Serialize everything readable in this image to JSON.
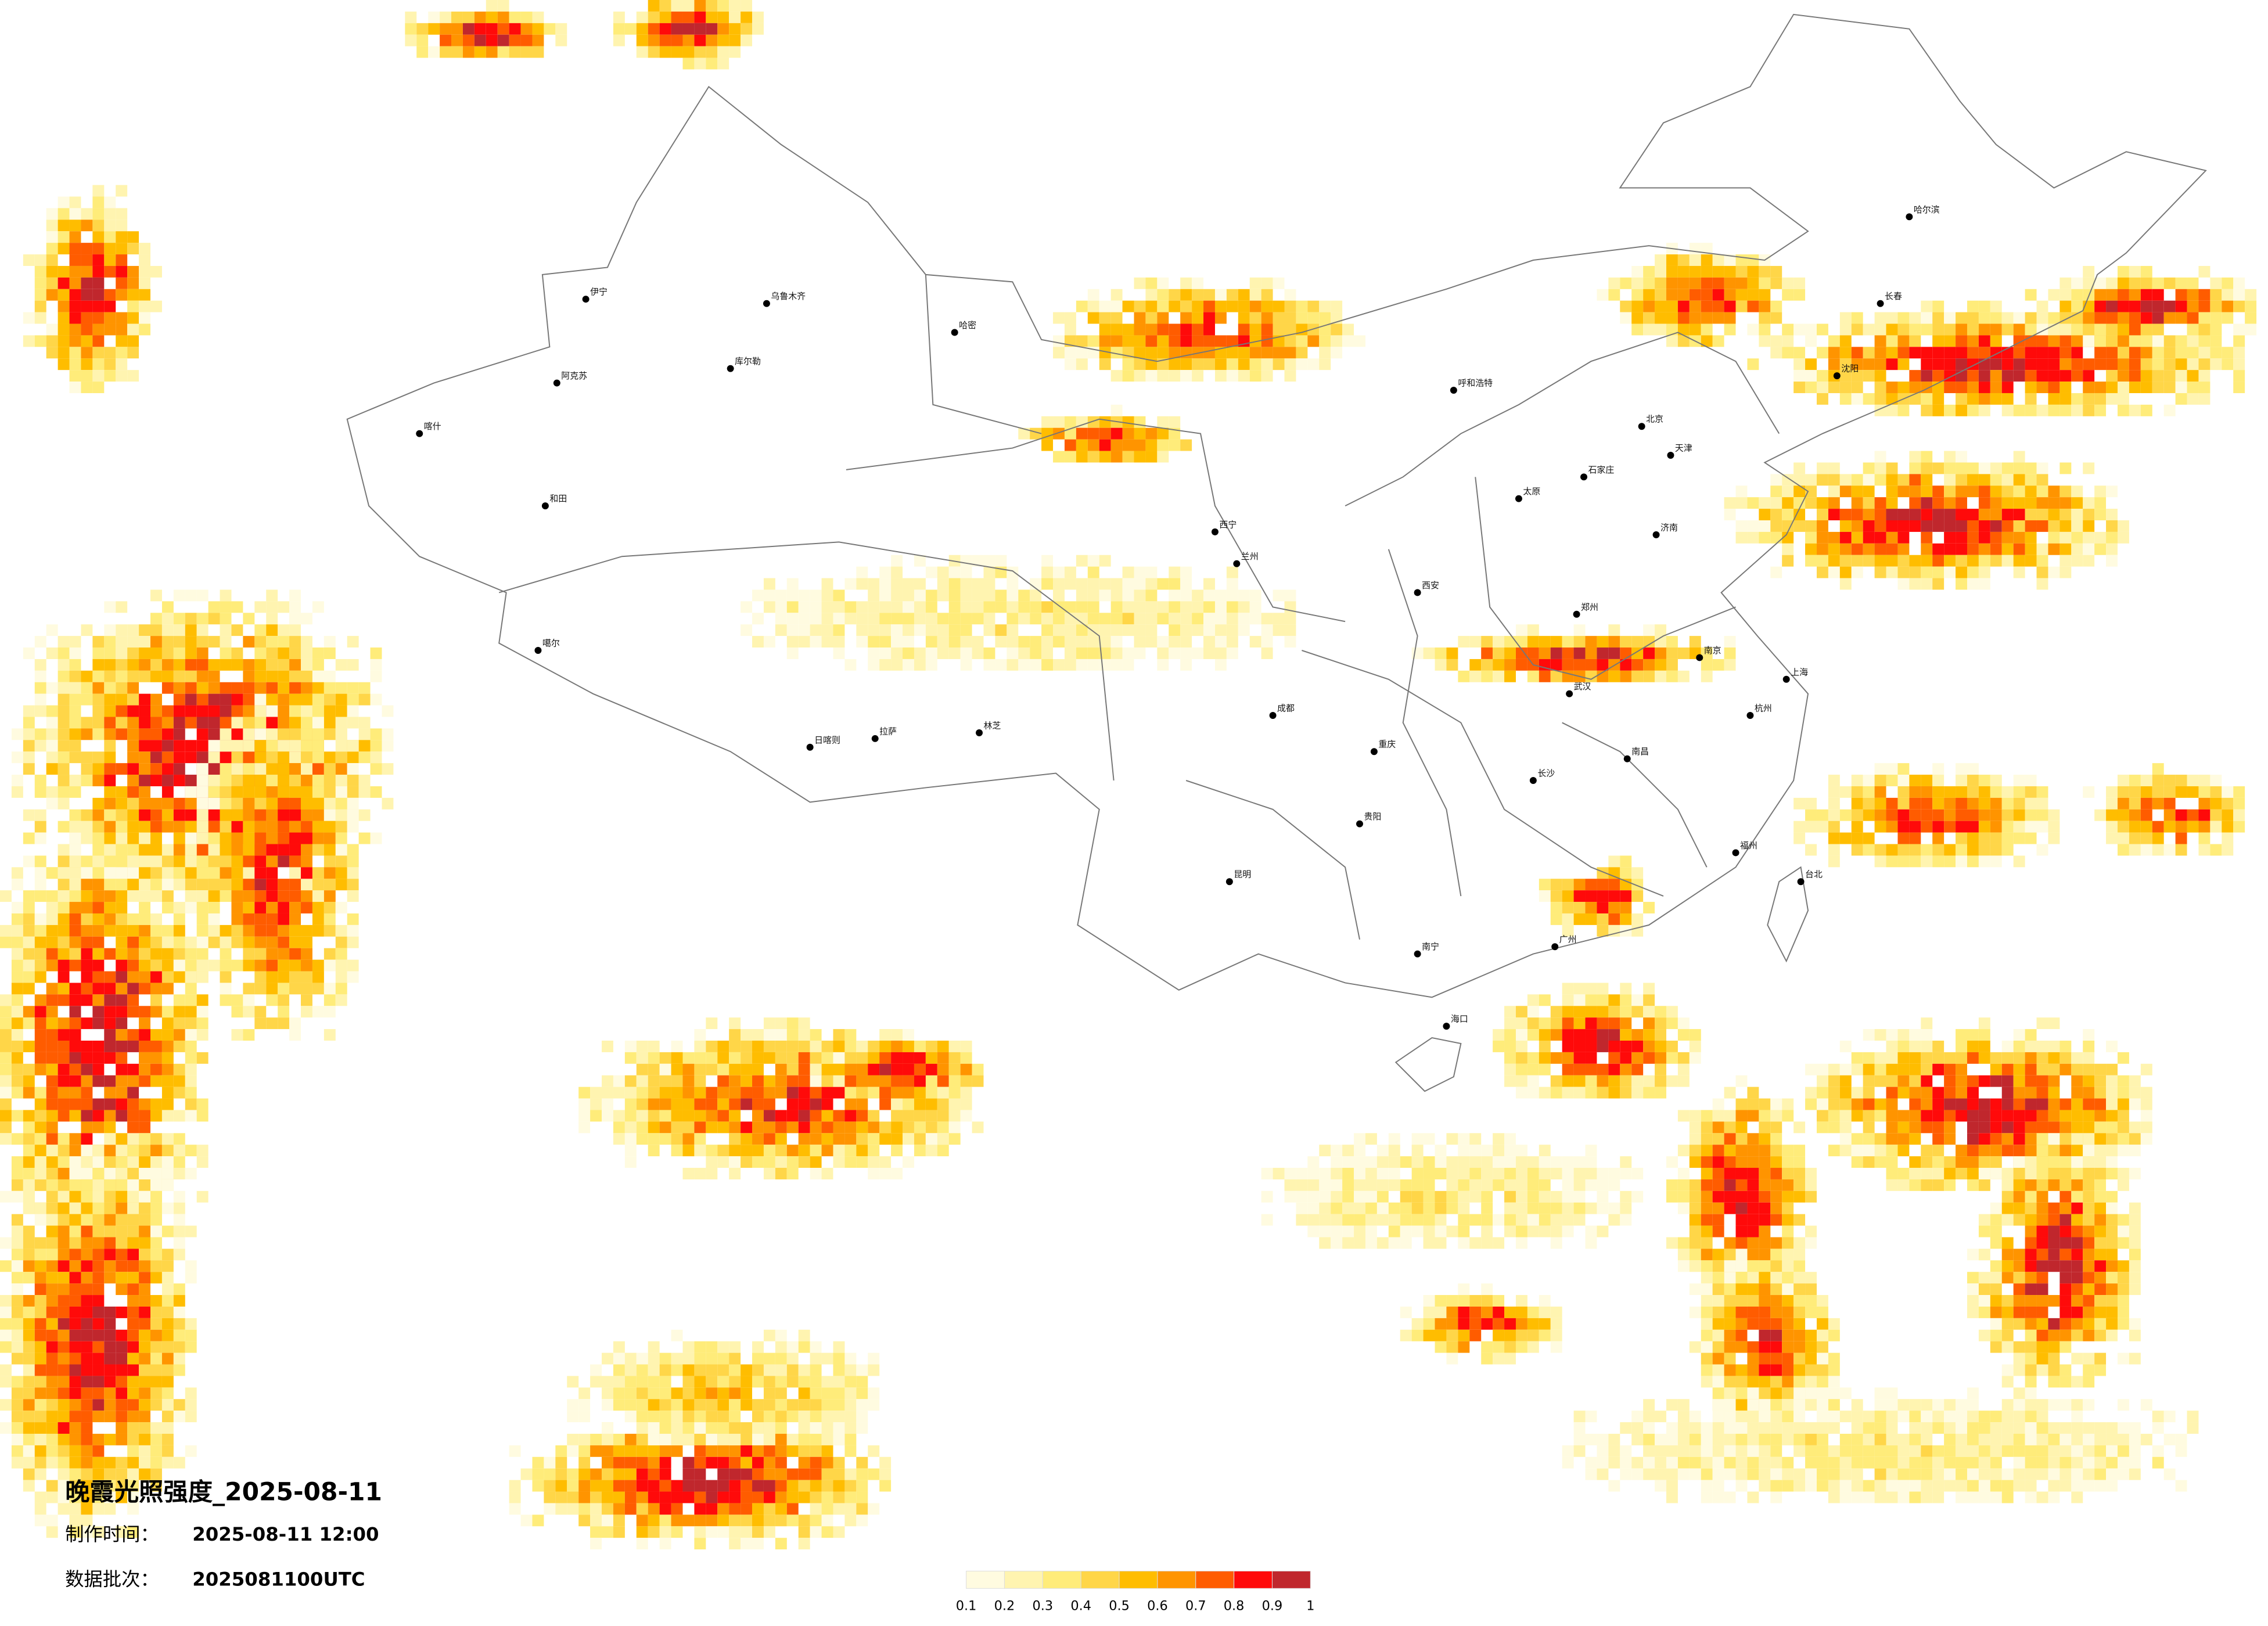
{
  "title": "晚霞光照强度_2025-08-11",
  "made_label": "制作时间：",
  "made_time": "2025-08-11 12:00",
  "batch_label": "数据批次：",
  "batch": "2025081100UTC",
  "legend": {
    "colors": [
      "#fffbe0",
      "#fff4b0",
      "#ffec7a",
      "#ffd648",
      "#ffbd00",
      "#ff9400",
      "#ff5c00",
      "#ff0a0a",
      "#c0272d"
    ],
    "ticks": [
      0.1,
      0.2,
      0.3,
      0.4,
      0.5,
      0.6,
      0.7,
      0.8,
      0.9,
      1
    ]
  },
  "cities": [
    "伊宁",
    "阿克苏",
    "喀什",
    "和田",
    "库尔勒",
    "乌鲁木齐",
    "哈密",
    "噶尔",
    "日喀则",
    "拉萨",
    "林芝",
    "西宁",
    "兰州",
    "呼和浩特",
    "北京",
    "天津",
    "石家庄",
    "太原",
    "济南",
    "郑州",
    "西安",
    "武汉",
    "南京",
    "上海",
    "杭州",
    "长沙",
    "南昌",
    "福州",
    "广州",
    "南宁",
    "海口",
    "贵阳",
    "昆明",
    "成都",
    "重庆",
    "沈阳",
    "长春",
    "哈尔滨",
    "台北"
  ]
}
